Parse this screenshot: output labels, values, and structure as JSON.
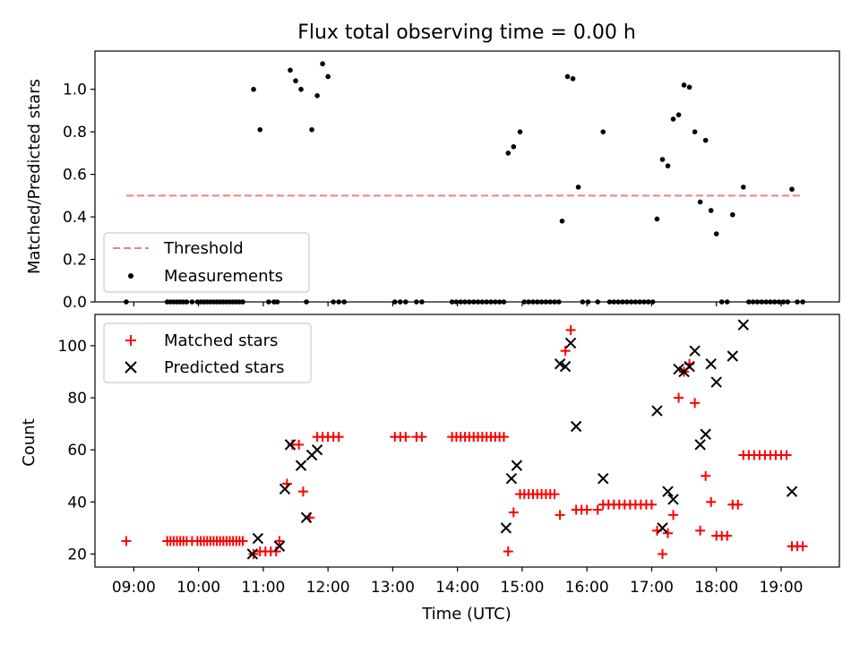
{
  "chart_data": [
    {
      "type": "scatter",
      "title": "Flux total observing time = 0.00 h",
      "ylabel": "Matched/Predicted stars",
      "xlabel": "",
      "xlim": [
        "08:24",
        "19:54"
      ],
      "ylim": [
        0,
        1.18
      ],
      "yticks": [
        "0.0",
        "0.2",
        "0.4",
        "0.6",
        "0.8",
        "1.0"
      ],
      "grid": false,
      "legend_position": "lower-left",
      "threshold": {
        "name": "Threshold",
        "value": 0.5,
        "x_range": [
          "08:53",
          "19:20"
        ],
        "color": "#f08080",
        "style": "dashed"
      },
      "series": [
        {
          "name": "Measurements",
          "color": "#000000",
          "marker": "dot",
          "points": [
            [
              "08:53",
              0
            ],
            [
              "09:31",
              0
            ],
            [
              "09:34",
              0
            ],
            [
              "09:37",
              0
            ],
            [
              "09:40",
              0
            ],
            [
              "09:43",
              0
            ],
            [
              "09:46",
              0
            ],
            [
              "09:49",
              0
            ],
            [
              "09:54",
              0
            ],
            [
              "09:59",
              0
            ],
            [
              "10:02",
              0
            ],
            [
              "10:05",
              0
            ],
            [
              "10:08",
              0
            ],
            [
              "10:11",
              0
            ],
            [
              "10:14",
              0
            ],
            [
              "10:17",
              0
            ],
            [
              "10:20",
              0
            ],
            [
              "10:23",
              0
            ],
            [
              "10:26",
              0
            ],
            [
              "10:29",
              0
            ],
            [
              "10:32",
              0
            ],
            [
              "10:35",
              0
            ],
            [
              "10:38",
              0
            ],
            [
              "10:41",
              0
            ],
            [
              "10:51",
              1.0
            ],
            [
              "10:57",
              0.81
            ],
            [
              "11:05",
              0
            ],
            [
              "11:10",
              0
            ],
            [
              "11:13",
              0
            ],
            [
              "11:25",
              1.09
            ],
            [
              "11:30",
              1.04
            ],
            [
              "11:35",
              1.0
            ],
            [
              "11:40",
              0
            ],
            [
              "11:45",
              0.81
            ],
            [
              "11:50",
              0.97
            ],
            [
              "11:55",
              1.12
            ],
            [
              "12:00",
              1.06
            ],
            [
              "12:05",
              0
            ],
            [
              "12:10",
              0
            ],
            [
              "12:15",
              0
            ],
            [
              "13:02",
              0
            ],
            [
              "13:07",
              0
            ],
            [
              "13:12",
              0
            ],
            [
              "13:22",
              0
            ],
            [
              "13:27",
              0
            ],
            [
              "13:55",
              0
            ],
            [
              "13:59",
              0
            ],
            [
              "14:03",
              0
            ],
            [
              "14:07",
              0
            ],
            [
              "14:11",
              0
            ],
            [
              "14:15",
              0
            ],
            [
              "14:19",
              0
            ],
            [
              "14:23",
              0
            ],
            [
              "14:27",
              0
            ],
            [
              "14:31",
              0
            ],
            [
              "14:35",
              0
            ],
            [
              "14:39",
              0
            ],
            [
              "14:43",
              0
            ],
            [
              "14:47",
              0.7
            ],
            [
              "14:52",
              0.73
            ],
            [
              "14:58",
              0.8
            ],
            [
              "15:02",
              0
            ],
            [
              "15:06",
              0
            ],
            [
              "15:10",
              0
            ],
            [
              "15:14",
              0
            ],
            [
              "15:18",
              0
            ],
            [
              "15:22",
              0
            ],
            [
              "15:26",
              0
            ],
            [
              "15:30",
              0
            ],
            [
              "15:34",
              0
            ],
            [
              "15:37",
              0.38
            ],
            [
              "15:42",
              1.06
            ],
            [
              "15:47",
              1.05
            ],
            [
              "15:52",
              0.54
            ],
            [
              "15:56",
              0
            ],
            [
              "16:01",
              0
            ],
            [
              "16:10",
              0
            ],
            [
              "16:15",
              0.8
            ],
            [
              "16:21",
              0
            ],
            [
              "16:25",
              0
            ],
            [
              "16:29",
              0
            ],
            [
              "16:33",
              0
            ],
            [
              "16:37",
              0
            ],
            [
              "16:41",
              0
            ],
            [
              "16:45",
              0
            ],
            [
              "16:49",
              0
            ],
            [
              "16:53",
              0
            ],
            [
              "16:57",
              0
            ],
            [
              "17:01",
              0
            ],
            [
              "17:05",
              0.39
            ],
            [
              "17:10",
              0.67
            ],
            [
              "17:15",
              0.64
            ],
            [
              "17:20",
              0.86
            ],
            [
              "17:25",
              0.88
            ],
            [
              "17:30",
              1.02
            ],
            [
              "17:35",
              1.01
            ],
            [
              "17:40",
              0.8
            ],
            [
              "17:45",
              0.47
            ],
            [
              "17:50",
              0.76
            ],
            [
              "17:55",
              0.43
            ],
            [
              "18:00",
              0.32
            ],
            [
              "18:05",
              0
            ],
            [
              "18:10",
              0
            ],
            [
              "18:15",
              0.41
            ],
            [
              "18:25",
              0.54
            ],
            [
              "18:30",
              0
            ],
            [
              "18:34",
              0
            ],
            [
              "18:38",
              0
            ],
            [
              "18:42",
              0
            ],
            [
              "18:46",
              0
            ],
            [
              "18:50",
              0
            ],
            [
              "18:54",
              0
            ],
            [
              "18:58",
              0
            ],
            [
              "19:02",
              0
            ],
            [
              "19:06",
              0
            ],
            [
              "19:10",
              0.53
            ],
            [
              "19:15",
              0
            ],
            [
              "19:20",
              0
            ]
          ]
        }
      ]
    },
    {
      "type": "scatter",
      "title": "",
      "ylabel": "Count",
      "xlabel": "Time (UTC)",
      "xlim": [
        "08:24",
        "19:54"
      ],
      "ylim": [
        15,
        112
      ],
      "yticks": [
        "20",
        "40",
        "60",
        "80",
        "100"
      ],
      "xticks": [
        "09:00",
        "10:00",
        "11:00",
        "12:00",
        "13:00",
        "14:00",
        "15:00",
        "16:00",
        "17:00",
        "18:00",
        "19:00"
      ],
      "grid": false,
      "legend_position": "upper-left",
      "series": [
        {
          "name": "Matched stars",
          "color": "#ff0000",
          "marker": "plus",
          "points": [
            [
              "08:53",
              25
            ],
            [
              "09:31",
              25
            ],
            [
              "09:34",
              25
            ],
            [
              "09:37",
              25
            ],
            [
              "09:40",
              25
            ],
            [
              "09:43",
              25
            ],
            [
              "09:46",
              25
            ],
            [
              "09:49",
              25
            ],
            [
              "09:54",
              25
            ],
            [
              "09:59",
              25
            ],
            [
              "10:02",
              25
            ],
            [
              "10:05",
              25
            ],
            [
              "10:08",
              25
            ],
            [
              "10:11",
              25
            ],
            [
              "10:14",
              25
            ],
            [
              "10:17",
              25
            ],
            [
              "10:20",
              25
            ],
            [
              "10:23",
              25
            ],
            [
              "10:26",
              25
            ],
            [
              "10:29",
              25
            ],
            [
              "10:32",
              25
            ],
            [
              "10:35",
              25
            ],
            [
              "10:38",
              25
            ],
            [
              "10:41",
              25
            ],
            [
              "10:51",
              20
            ],
            [
              "10:57",
              21
            ],
            [
              "11:02",
              21
            ],
            [
              "11:07",
              21
            ],
            [
              "11:12",
              21
            ],
            [
              "11:15",
              25
            ],
            [
              "11:22",
              47
            ],
            [
              "11:27",
              62
            ],
            [
              "11:33",
              62
            ],
            [
              "11:37",
              44
            ],
            [
              "11:43",
              34
            ],
            [
              "11:50",
              65
            ],
            [
              "11:55",
              65
            ],
            [
              "12:00",
              65
            ],
            [
              "12:05",
              65
            ],
            [
              "12:10",
              65
            ],
            [
              "13:02",
              65
            ],
            [
              "13:07",
              65
            ],
            [
              "13:12",
              65
            ],
            [
              "13:22",
              65
            ],
            [
              "13:27",
              65
            ],
            [
              "13:55",
              65
            ],
            [
              "13:59",
              65
            ],
            [
              "14:03",
              65
            ],
            [
              "14:07",
              65
            ],
            [
              "14:11",
              65
            ],
            [
              "14:15",
              65
            ],
            [
              "14:19",
              65
            ],
            [
              "14:23",
              65
            ],
            [
              "14:27",
              65
            ],
            [
              "14:31",
              65
            ],
            [
              "14:35",
              65
            ],
            [
              "14:39",
              65
            ],
            [
              "14:43",
              65
            ],
            [
              "14:47",
              21
            ],
            [
              "14:52",
              36
            ],
            [
              "14:58",
              43
            ],
            [
              "15:02",
              43
            ],
            [
              "15:06",
              43
            ],
            [
              "15:10",
              43
            ],
            [
              "15:14",
              43
            ],
            [
              "15:18",
              43
            ],
            [
              "15:22",
              43
            ],
            [
              "15:26",
              43
            ],
            [
              "15:30",
              43
            ],
            [
              "15:35",
              35
            ],
            [
              "15:40",
              98
            ],
            [
              "15:45",
              106
            ],
            [
              "15:50",
              37
            ],
            [
              "15:55",
              37
            ],
            [
              "16:00",
              37
            ],
            [
              "16:10",
              37
            ],
            [
              "16:15",
              39
            ],
            [
              "16:20",
              39
            ],
            [
              "16:25",
              39
            ],
            [
              "16:30",
              39
            ],
            [
              "16:35",
              39
            ],
            [
              "16:40",
              39
            ],
            [
              "16:45",
              39
            ],
            [
              "16:50",
              39
            ],
            [
              "16:55",
              39
            ],
            [
              "17:00",
              39
            ],
            [
              "17:05",
              29
            ],
            [
              "17:10",
              20
            ],
            [
              "17:15",
              28
            ],
            [
              "17:20",
              35
            ],
            [
              "17:25",
              80
            ],
            [
              "17:30",
              90
            ],
            [
              "17:35",
              93
            ],
            [
              "17:40",
              78
            ],
            [
              "17:45",
              29
            ],
            [
              "17:50",
              50
            ],
            [
              "17:55",
              40
            ],
            [
              "18:00",
              27
            ],
            [
              "18:05",
              27
            ],
            [
              "18:10",
              27
            ],
            [
              "18:15",
              39
            ],
            [
              "18:20",
              39
            ],
            [
              "18:25",
              58
            ],
            [
              "18:30",
              58
            ],
            [
              "18:35",
              58
            ],
            [
              "18:40",
              58
            ],
            [
              "18:45",
              58
            ],
            [
              "18:50",
              58
            ],
            [
              "18:55",
              58
            ],
            [
              "19:00",
              58
            ],
            [
              "19:05",
              58
            ],
            [
              "19:10",
              23
            ],
            [
              "19:15",
              23
            ],
            [
              "19:20",
              23
            ]
          ]
        },
        {
          "name": "Predicted stars",
          "color": "#000000",
          "marker": "x",
          "points": [
            [
              "10:50",
              20
            ],
            [
              "10:55",
              26
            ],
            [
              "11:15",
              23
            ],
            [
              "11:20",
              45
            ],
            [
              "11:25",
              62
            ],
            [
              "11:35",
              54
            ],
            [
              "11:40",
              34
            ],
            [
              "11:45",
              58
            ],
            [
              "11:50",
              60
            ],
            [
              "14:45",
              30
            ],
            [
              "14:50",
              49
            ],
            [
              "14:55",
              54
            ],
            [
              "15:35",
              93
            ],
            [
              "15:40",
              92
            ],
            [
              "15:45",
              101
            ],
            [
              "15:50",
              69
            ],
            [
              "16:15",
              49
            ],
            [
              "17:05",
              75
            ],
            [
              "17:10",
              30
            ],
            [
              "17:15",
              44
            ],
            [
              "17:20",
              41
            ],
            [
              "17:25",
              91
            ],
            [
              "17:30",
              90
            ],
            [
              "17:35",
              92
            ],
            [
              "17:40",
              98
            ],
            [
              "17:45",
              62
            ],
            [
              "17:50",
              66
            ],
            [
              "17:55",
              93
            ],
            [
              "18:00",
              86
            ],
            [
              "18:15",
              96
            ],
            [
              "18:25",
              108
            ],
            [
              "19:10",
              44
            ]
          ]
        }
      ]
    }
  ]
}
